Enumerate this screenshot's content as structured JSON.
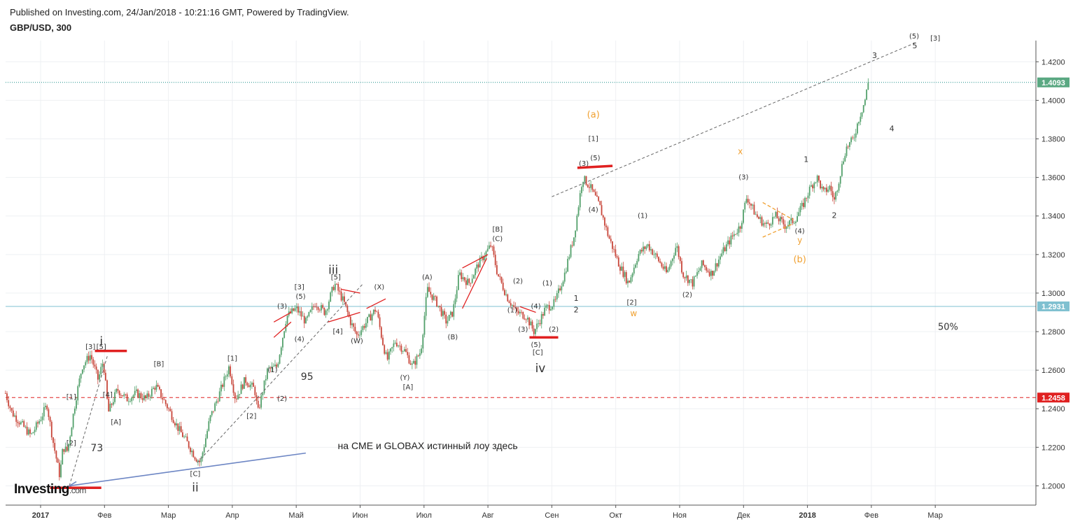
{
  "header": {
    "published": "Published on Investing.com, 24/Jan/2018 - 10:21:16 GMT, Powered by TradingView.",
    "symbol": "GBP/USD, 300"
  },
  "logo": {
    "brand": "Investing",
    "suffix": ".com"
  },
  "colors": {
    "up": "#53a06b",
    "down": "#c8463a",
    "wave_red": "#e02020",
    "wave_orange": "#f0a030",
    "trend_blue": "#6d86c4",
    "hline_teal": "#1c8f8a",
    "hline_cyan": "#7fc0d0"
  },
  "chart_data": {
    "type": "candlestick",
    "instrument": "GBP/USD",
    "timeframe": "300",
    "ylim": [
      1.19,
      1.431
    ],
    "y_ticks": [
      1.2,
      1.22,
      1.24,
      1.26,
      1.28,
      1.3,
      1.32,
      1.34,
      1.36,
      1.38,
      1.4,
      1.42
    ],
    "x_ticks": [
      {
        "label": "2017",
        "t": 0.0,
        "bold": true
      },
      {
        "label": "Фев",
        "t": 1.0
      },
      {
        "label": "Мар",
        "t": 2.0
      },
      {
        "label": "Апр",
        "t": 3.0
      },
      {
        "label": "Май",
        "t": 4.0
      },
      {
        "label": "Июн",
        "t": 5.0
      },
      {
        "label": "Июл",
        "t": 6.0
      },
      {
        "label": "Авг",
        "t": 7.0
      },
      {
        "label": "Сен",
        "t": 8.0
      },
      {
        "label": "Окт",
        "t": 9.0
      },
      {
        "label": "Ноя",
        "t": 10.0
      },
      {
        "label": "Дек",
        "t": 11.0
      },
      {
        "label": "2018",
        "t": 12.0,
        "bold": true
      },
      {
        "label": "Фев",
        "t": 13.0
      },
      {
        "label": "Мар",
        "t": 14.0
      }
    ],
    "price_path": [
      [
        -0.55,
        1.248
      ],
      [
        -0.45,
        1.238
      ],
      [
        -0.3,
        1.232
      ],
      [
        -0.15,
        1.226
      ],
      [
        0.0,
        1.235
      ],
      [
        0.1,
        1.242
      ],
      [
        0.2,
        1.222
      ],
      [
        0.3,
        1.205
      ],
      [
        0.35,
        1.22
      ],
      [
        0.42,
        1.218
      ],
      [
        0.55,
        1.245
      ],
      [
        0.65,
        1.262
      ],
      [
        0.78,
        1.268
      ],
      [
        0.9,
        1.255
      ],
      [
        0.98,
        1.265
      ],
      [
        1.06,
        1.238
      ],
      [
        1.2,
        1.25
      ],
      [
        1.35,
        1.245
      ],
      [
        1.5,
        1.248
      ],
      [
        1.65,
        1.245
      ],
      [
        1.8,
        1.252
      ],
      [
        2.0,
        1.24
      ],
      [
        2.15,
        1.23
      ],
      [
        2.3,
        1.222
      ],
      [
        2.42,
        1.215
      ],
      [
        2.5,
        1.212
      ],
      [
        2.65,
        1.235
      ],
      [
        2.8,
        1.248
      ],
      [
        2.95,
        1.262
      ],
      [
        3.05,
        1.245
      ],
      [
        3.2,
        1.255
      ],
      [
        3.35,
        1.25
      ],
      [
        3.4,
        1.238
      ],
      [
        3.55,
        1.26
      ],
      [
        3.7,
        1.262
      ],
      [
        3.85,
        1.288
      ],
      [
        4.0,
        1.292
      ],
      [
        4.15,
        1.285
      ],
      [
        4.3,
        1.295
      ],
      [
        4.45,
        1.29
      ],
      [
        4.6,
        1.305
      ],
      [
        4.75,
        1.295
      ],
      [
        4.85,
        1.285
      ],
      [
        4.95,
        1.278
      ],
      [
        5.1,
        1.285
      ],
      [
        5.25,
        1.292
      ],
      [
        5.35,
        1.275
      ],
      [
        5.42,
        1.265
      ],
      [
        5.55,
        1.275
      ],
      [
        5.7,
        1.27
      ],
      [
        5.82,
        1.262
      ],
      [
        5.95,
        1.27
      ],
      [
        6.05,
        1.302
      ],
      [
        6.2,
        1.295
      ],
      [
        6.35,
        1.285
      ],
      [
        6.45,
        1.29
      ],
      [
        6.55,
        1.31
      ],
      [
        6.7,
        1.305
      ],
      [
        6.85,
        1.315
      ],
      [
        7.05,
        1.325
      ],
      [
        7.15,
        1.31
      ],
      [
        7.3,
        1.298
      ],
      [
        7.45,
        1.29
      ],
      [
        7.6,
        1.288
      ],
      [
        7.72,
        1.28
      ],
      [
        7.8,
        1.285
      ],
      [
        7.9,
        1.292
      ],
      [
        8.05,
        1.295
      ],
      [
        8.2,
        1.31
      ],
      [
        8.35,
        1.33
      ],
      [
        8.48,
        1.36
      ],
      [
        8.6,
        1.355
      ],
      [
        8.75,
        1.345
      ],
      [
        8.88,
        1.33
      ],
      [
        9.05,
        1.315
      ],
      [
        9.2,
        1.305
      ],
      [
        9.35,
        1.32
      ],
      [
        9.5,
        1.325
      ],
      [
        9.65,
        1.318
      ],
      [
        9.8,
        1.31
      ],
      [
        9.95,
        1.325
      ],
      [
        10.05,
        1.31
      ],
      [
        10.2,
        1.305
      ],
      [
        10.35,
        1.315
      ],
      [
        10.5,
        1.31
      ],
      [
        10.65,
        1.32
      ],
      [
        10.8,
        1.328
      ],
      [
        10.95,
        1.335
      ],
      [
        11.05,
        1.35
      ],
      [
        11.2,
        1.34
      ],
      [
        11.35,
        1.335
      ],
      [
        11.5,
        1.34
      ],
      [
        11.65,
        1.335
      ],
      [
        11.8,
        1.338
      ],
      [
        11.92,
        1.345
      ],
      [
        12.05,
        1.355
      ],
      [
        12.15,
        1.36
      ],
      [
        12.25,
        1.352
      ],
      [
        12.35,
        1.355
      ],
      [
        12.42,
        1.348
      ],
      [
        12.5,
        1.36
      ],
      [
        12.6,
        1.375
      ],
      [
        12.72,
        1.38
      ],
      [
        12.8,
        1.39
      ],
      [
        12.9,
        1.4
      ],
      [
        12.95,
        1.409
      ]
    ],
    "h_lines": [
      {
        "label": "1.4093",
        "y": 1.4093,
        "style": "dotted",
        "color": "#1c8f8a",
        "badge_color": "#5aa882"
      },
      {
        "label": "1.2931",
        "y": 1.2931,
        "style": "solid",
        "color": "#7fc0d0",
        "badge_color": "#7fc0d0"
      },
      {
        "label": "1.2458",
        "y": 1.2458,
        "style": "dashed",
        "color": "#e02020",
        "badge_color": "#e02020"
      }
    ],
    "trend_lines": [
      {
        "from": [
          8.0,
          1.35
        ],
        "to": [
          13.7,
          1.43
        ],
        "color": "#666666",
        "style": "dashed"
      },
      {
        "from": [
          0.45,
          1.2
        ],
        "to": [
          4.15,
          1.217
        ],
        "color": "#6d86c4",
        "style": "solid"
      },
      {
        "from": [
          0.45,
          1.2
        ],
        "to": [
          1.05,
          1.268
        ],
        "color": "#666666",
        "style": "dashed"
      },
      {
        "from": [
          2.45,
          1.212
        ],
        "to": [
          5.05,
          1.305
        ],
        "color": "#666666",
        "style": "dashed"
      }
    ],
    "red_bars": [
      {
        "from": [
          0.15,
          1.199
        ],
        "to": [
          0.95,
          1.199
        ]
      },
      {
        "from": [
          0.85,
          1.27
        ],
        "to": [
          1.35,
          1.27
        ]
      },
      {
        "from": [
          7.65,
          1.277
        ],
        "to": [
          8.1,
          1.277
        ]
      },
      {
        "from": [
          8.4,
          1.365
        ],
        "to": [
          8.95,
          1.366
        ]
      }
    ],
    "red_lines": [
      {
        "from": [
          3.65,
          1.277
        ],
        "to": [
          3.92,
          1.285
        ]
      },
      {
        "from": [
          3.65,
          1.285
        ],
        "to": [
          3.92,
          1.29
        ]
      },
      {
        "from": [
          4.7,
          1.302
        ],
        "to": [
          5.0,
          1.3
        ]
      },
      {
        "from": [
          4.5,
          1.285
        ],
        "to": [
          5.0,
          1.29
        ]
      },
      {
        "from": [
          5.1,
          1.292
        ],
        "to": [
          5.4,
          1.297
        ]
      },
      {
        "from": [
          6.6,
          1.313
        ],
        "to": [
          7.0,
          1.32
        ]
      },
      {
        "from": [
          6.6,
          1.292
        ],
        "to": [
          6.98,
          1.318
        ]
      },
      {
        "from": [
          7.5,
          1.293
        ],
        "to": [
          7.75,
          1.29
        ]
      }
    ],
    "orange_lines": [
      {
        "from": [
          11.3,
          1.347
        ],
        "to": [
          11.78,
          1.338
        ]
      },
      {
        "from": [
          11.3,
          1.329
        ],
        "to": [
          11.78,
          1.336
        ]
      }
    ],
    "annotations": [
      {
        "text": "i",
        "t": 0.95,
        "y": 1.273,
        "color": "#333",
        "size": 17
      },
      {
        "text": "ii",
        "t": 2.42,
        "y": 1.197,
        "color": "#333",
        "size": 17
      },
      {
        "text": "iii",
        "t": 4.58,
        "y": 1.31,
        "color": "#333",
        "size": 17
      },
      {
        "text": "iv",
        "t": 7.82,
        "y": 1.259,
        "color": "#333",
        "size": 17
      },
      {
        "text": "[3]",
        "t": 0.78,
        "y": 1.271,
        "color": "#333",
        "size": 10
      },
      {
        "text": "[5]",
        "t": 0.95,
        "y": 1.271,
        "color": "#333",
        "size": 10
      },
      {
        "text": "[1]",
        "t": 0.48,
        "y": 1.245,
        "color": "#333",
        "size": 10
      },
      {
        "text": "[4]",
        "t": 1.05,
        "y": 1.246,
        "color": "#333",
        "size": 10
      },
      {
        "text": "[2]",
        "t": 0.48,
        "y": 1.221,
        "color": "#333",
        "size": 10
      },
      {
        "text": "[A]",
        "t": 1.18,
        "y": 1.232,
        "color": "#333",
        "size": 10
      },
      {
        "text": "[B]",
        "t": 1.85,
        "y": 1.262,
        "color": "#333",
        "size": 10
      },
      {
        "text": "[C]",
        "t": 2.42,
        "y": 1.205,
        "color": "#333",
        "size": 10
      },
      {
        "text": "[1]",
        "t": 3.0,
        "y": 1.265,
        "color": "#333",
        "size": 10
      },
      {
        "text": "[2]",
        "t": 3.3,
        "y": 1.235,
        "color": "#333",
        "size": 10
      },
      {
        "text": "(1)",
        "t": 3.63,
        "y": 1.259,
        "color": "#333",
        "size": 10
      },
      {
        "text": "(2)",
        "t": 3.78,
        "y": 1.244,
        "color": "#333",
        "size": 10
      },
      {
        "text": "(3)",
        "t": 3.78,
        "y": 1.292,
        "color": "#333",
        "size": 10
      },
      {
        "text": "(4)",
        "t": 4.05,
        "y": 1.275,
        "color": "#333",
        "size": 10
      },
      {
        "text": "(5)",
        "t": 4.07,
        "y": 1.297,
        "color": "#333",
        "size": 10
      },
      {
        "text": "[3]",
        "t": 4.05,
        "y": 1.302,
        "color": "#333",
        "size": 10
      },
      {
        "text": "[4]",
        "t": 4.65,
        "y": 1.279,
        "color": "#333",
        "size": 10
      },
      {
        "text": "[5]",
        "t": 4.62,
        "y": 1.307,
        "color": "#333",
        "size": 10
      },
      {
        "text": "95",
        "t": 4.17,
        "y": 1.255,
        "color": "#333",
        "size": 14
      },
      {
        "text": "73",
        "t": 0.88,
        "y": 1.218,
        "color": "#333",
        "size": 14
      },
      {
        "text": "(W)",
        "t": 4.95,
        "y": 1.274,
        "color": "#333",
        "size": 10
      },
      {
        "text": "(X)",
        "t": 5.3,
        "y": 1.302,
        "color": "#333",
        "size": 10
      },
      {
        "text": "(Y)",
        "t": 5.7,
        "y": 1.255,
        "color": "#333",
        "size": 10
      },
      {
        "text": "[A]",
        "t": 5.75,
        "y": 1.25,
        "color": "#333",
        "size": 10
      },
      {
        "text": "(A)",
        "t": 6.05,
        "y": 1.307,
        "color": "#333",
        "size": 10
      },
      {
        "text": "(B)",
        "t": 6.45,
        "y": 1.276,
        "color": "#333",
        "size": 10
      },
      {
        "text": "[B]",
        "t": 7.15,
        "y": 1.332,
        "color": "#333",
        "size": 10
      },
      {
        "text": "(C)",
        "t": 7.15,
        "y": 1.327,
        "color": "#333",
        "size": 10
      },
      {
        "text": "(2)",
        "t": 7.47,
        "y": 1.305,
        "color": "#333",
        "size": 10
      },
      {
        "text": "(1)",
        "t": 7.38,
        "y": 1.29,
        "color": "#333",
        "size": 10
      },
      {
        "text": "(4)",
        "t": 7.75,
        "y": 1.292,
        "color": "#333",
        "size": 10
      },
      {
        "text": "(3)",
        "t": 7.55,
        "y": 1.28,
        "color": "#333",
        "size": 10
      },
      {
        "text": "(5)",
        "t": 7.75,
        "y": 1.272,
        "color": "#333",
        "size": 10
      },
      {
        "text": "[C]",
        "t": 7.78,
        "y": 1.268,
        "color": "#333",
        "size": 10
      },
      {
        "text": "(2)",
        "t": 8.03,
        "y": 1.28,
        "color": "#333",
        "size": 10
      },
      {
        "text": "(1)",
        "t": 7.93,
        "y": 1.304,
        "color": "#333",
        "size": 10
      },
      {
        "text": "1",
        "t": 8.38,
        "y": 1.296,
        "color": "#333",
        "size": 11
      },
      {
        "text": "2",
        "t": 8.38,
        "y": 1.29,
        "color": "#333",
        "size": 11
      },
      {
        "text": "(3)",
        "t": 8.5,
        "y": 1.366,
        "color": "#333",
        "size": 10
      },
      {
        "text": "(5)",
        "t": 8.68,
        "y": 1.369,
        "color": "#333",
        "size": 10
      },
      {
        "text": "(4)",
        "t": 8.65,
        "y": 1.342,
        "color": "#333",
        "size": 10
      },
      {
        "text": "[1]",
        "t": 8.65,
        "y": 1.379,
        "color": "#333",
        "size": 10
      },
      {
        "text": "(a)",
        "t": 8.65,
        "y": 1.391,
        "color": "#f0a030",
        "size": 13
      },
      {
        "text": "[2]",
        "t": 9.25,
        "y": 1.294,
        "color": "#333",
        "size": 10
      },
      {
        "text": "w",
        "t": 9.28,
        "y": 1.288,
        "color": "#f0a030",
        "size": 12
      },
      {
        "text": "(1)",
        "t": 9.42,
        "y": 1.339,
        "color": "#333",
        "size": 10
      },
      {
        "text": "(2)",
        "t": 10.12,
        "y": 1.298,
        "color": "#333",
        "size": 10
      },
      {
        "text": "(3)",
        "t": 11.0,
        "y": 1.359,
        "color": "#333",
        "size": 10
      },
      {
        "text": "x",
        "t": 10.95,
        "y": 1.372,
        "color": "#f0a030",
        "size": 12
      },
      {
        "text": "(4)",
        "t": 11.88,
        "y": 1.331,
        "color": "#333",
        "size": 10
      },
      {
        "text": "y",
        "t": 11.88,
        "y": 1.326,
        "color": "#f0a030",
        "size": 12
      },
      {
        "text": "(b)",
        "t": 11.88,
        "y": 1.316,
        "color": "#f0a030",
        "size": 13
      },
      {
        "text": "1",
        "t": 11.98,
        "y": 1.368,
        "color": "#333",
        "size": 11
      },
      {
        "text": "2",
        "t": 12.42,
        "y": 1.339,
        "color": "#333",
        "size": 11
      },
      {
        "text": "3",
        "t": 13.05,
        "y": 1.422,
        "color": "#333",
        "size": 11
      },
      {
        "text": "4",
        "t": 13.32,
        "y": 1.384,
        "color": "#333",
        "size": 11
      },
      {
        "text": "(5)",
        "t": 13.67,
        "y": 1.432,
        "color": "#333",
        "size": 10
      },
      {
        "text": "5",
        "t": 13.68,
        "y": 1.427,
        "color": "#333",
        "size": 11
      },
      {
        "text": "[3]",
        "t": 14.0,
        "y": 1.431,
        "color": "#333",
        "size": 10
      },
      {
        "text": "50%",
        "t": 14.2,
        "y": 1.281,
        "color": "#333",
        "size": 13
      }
    ],
    "note": {
      "text": "на CME и GLOBAX  истинный лоу здесь",
      "t": 4.65,
      "y": 1.219
    }
  }
}
